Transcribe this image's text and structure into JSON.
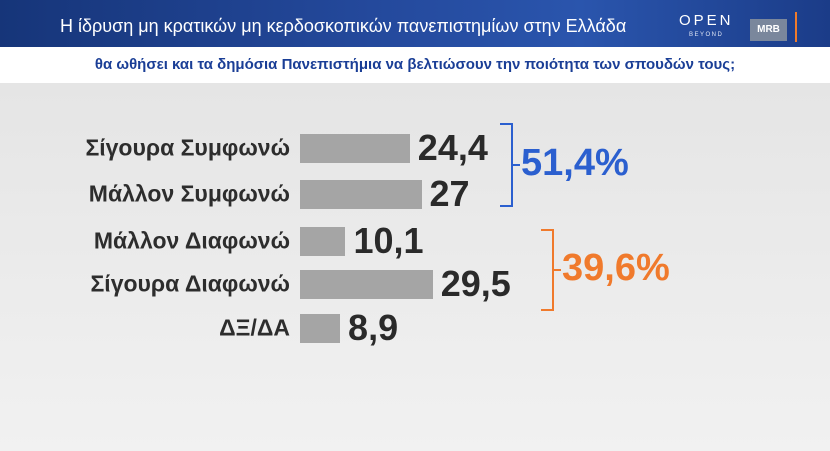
{
  "header": {
    "logo_open": "OPEN",
    "logo_beyond": "BEYOND",
    "logo_mrb": "MRB",
    "accent_line_color": "#f07b2b"
  },
  "chart_data": {
    "type": "bar",
    "orientation": "horizontal",
    "title": "Η ίδρυση μη κρατικών μη κερδοσκοπικών πανεπιστημίων στην Ελλάδα",
    "subtitle": "θα ωθήσει και τα δημόσια Πανεπιστήμια να βελτιώσουν την ποιότητα των σπουδών τους;",
    "categories": [
      "Σίγουρα Συμφωνώ",
      "Μάλλον Συμφωνώ",
      "Μάλλον Διαφωνώ",
      "Σίγουρα Διαφωνώ",
      "ΔΞ/ΔΑ"
    ],
    "values": [
      24.4,
      27,
      10.1,
      29.5,
      8.9
    ],
    "value_labels": [
      "24,4",
      "27",
      "10,1",
      "29,5",
      "8,9"
    ],
    "xlim": [
      0,
      100
    ],
    "grid": false,
    "legend": "none",
    "bar_color": "#a5a5a5",
    "groups": [
      {
        "label": "51,4%",
        "members": [
          0,
          1
        ],
        "color": "#2b5fcf"
      },
      {
        "label": "39,6%",
        "members": [
          2,
          3
        ],
        "color": "#f07a2c"
      }
    ]
  }
}
